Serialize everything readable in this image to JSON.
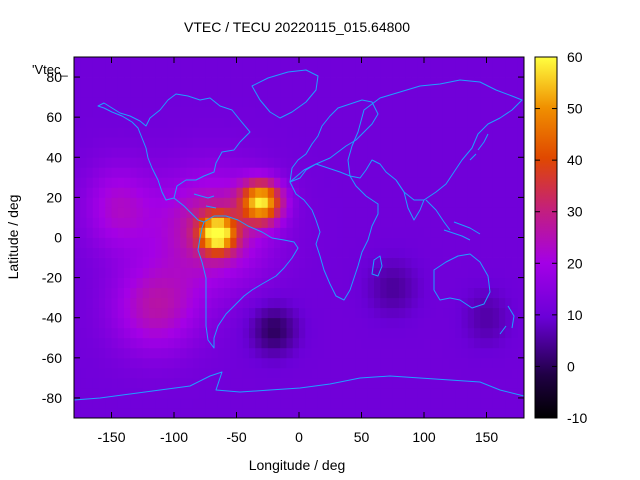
{
  "chart_data": {
    "type": "heatmap",
    "title": "VTEC / TECU 20220115_015.64800",
    "key_label": "'Vtec_",
    "xlabel": "Longitude / deg",
    "ylabel": "Latitude / deg",
    "xlim": [
      -180,
      180
    ],
    "ylim": [
      -90,
      90
    ],
    "x_ticks": [
      -150,
      -100,
      -50,
      0,
      50,
      100,
      150
    ],
    "y_ticks": [
      -80,
      -60,
      -40,
      -20,
      0,
      20,
      40,
      60,
      80
    ],
    "colorbar": {
      "min": -10,
      "max": 60,
      "ticks": [
        -10,
        0,
        10,
        20,
        30,
        40,
        50,
        60
      ]
    },
    "grid": false,
    "overlay": "coastlines",
    "colors": {
      "coastline": "#1ea0ff"
    },
    "grid_resolution_deg": 5,
    "features": [
      {
        "name": "background",
        "value": 11
      },
      {
        "name": "equatorial anomaly crest north",
        "lon": -30,
        "lat": 18,
        "value": 53
      },
      {
        "name": "equatorial anomaly crest south",
        "lon": -65,
        "lat": 2,
        "value": 52
      },
      {
        "name": "broad daytime enhancement",
        "lon": -70,
        "lat": 5,
        "value": 28
      },
      {
        "name": "southern Pacific enhancement",
        "lon": -115,
        "lat": -35,
        "value": 25
      },
      {
        "name": "north-west Pacific enhancement",
        "lon": -145,
        "lat": 15,
        "value": 22
      },
      {
        "name": "south Atlantic minimum",
        "lon": -20,
        "lat": -46,
        "value": 0
      },
      {
        "name": "Indian Ocean depletion",
        "lon": 75,
        "lat": -25,
        "value": 5
      },
      {
        "name": "south Pacific depletion",
        "lon": 150,
        "lat": -40,
        "value": 6
      }
    ]
  }
}
